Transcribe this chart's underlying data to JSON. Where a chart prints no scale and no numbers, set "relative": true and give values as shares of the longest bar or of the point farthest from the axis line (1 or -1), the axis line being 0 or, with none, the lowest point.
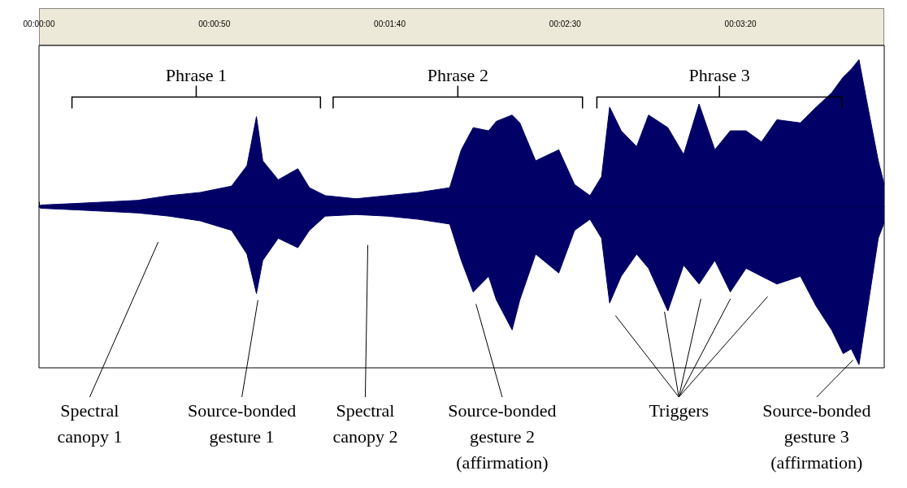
{
  "chart_data": {
    "type": "area",
    "relative": true,
    "x": [
      0,
      0.4,
      10.4,
      19.3,
      28.2,
      37.1,
      46.0,
      54.9,
      59.3,
      62.0,
      63.8,
      68.2,
      73.8,
      77.1,
      81.6,
      90.4,
      99.3,
      108.2,
      117.1,
      120.4,
      123.8,
      128.2,
      130.4,
      134.9,
      137.1,
      141.6,
      148.2,
      152.7,
      157.1,
      160.4,
      162.7,
      166.0,
      170.4,
      173.8,
      179.3,
      183.8,
      188.2,
      192.7,
      197.1,
      201.6,
      206.0,
      210.4,
      217.1,
      221.6,
      226.0,
      229.3,
      231.6,
      233.8,
      236.0,
      239.3,
      241
    ],
    "series": [
      {
        "color": "#000066",
        "values": [
          0,
          0.01,
          0.02,
          0.03,
          0.04,
          0.07,
          0.09,
          0.13,
          0.26,
          0.57,
          0.29,
          0.17,
          0.24,
          0.12,
          0.07,
          0.05,
          0.07,
          0.09,
          0.12,
          0.36,
          0.5,
          0.48,
          0.54,
          0.58,
          0.53,
          0.29,
          0.36,
          0.14,
          0.07,
          0.19,
          0.63,
          0.48,
          0.38,
          0.58,
          0.5,
          0.33,
          0.65,
          0.36,
          0.48,
          0.48,
          0.41,
          0.55,
          0.53,
          0.63,
          0.72,
          0.82,
          0.87,
          0.93,
          0.67,
          0.29,
          0.14
        ]
      },
      {
        "color": "#000066",
        "values": [
          0,
          -0.01,
          -0.02,
          -0.03,
          -0.04,
          -0.06,
          -0.09,
          -0.15,
          -0.3,
          -0.55,
          -0.34,
          -0.2,
          -0.26,
          -0.15,
          -0.06,
          -0.05,
          -0.06,
          -0.08,
          -0.11,
          -0.34,
          -0.54,
          -0.44,
          -0.59,
          -0.78,
          -0.59,
          -0.3,
          -0.42,
          -0.15,
          -0.08,
          -0.2,
          -0.61,
          -0.44,
          -0.3,
          -0.39,
          -0.66,
          -0.37,
          -0.49,
          -0.34,
          -0.54,
          -0.39,
          -0.44,
          -0.49,
          -0.44,
          -0.63,
          -0.78,
          -0.93,
          -0.9,
          -1.0,
          -0.68,
          -0.2,
          -0.1
        ]
      }
    ],
    "xlim": [
      0,
      241
    ],
    "xticks": [
      {
        "value": 0,
        "label": "00:00:00"
      },
      {
        "value": 50,
        "label": "00:00:50"
      },
      {
        "value": 100,
        "label": "00:01:40"
      },
      {
        "value": 150,
        "label": "00:02:30"
      },
      {
        "value": 200,
        "label": "00:03:20"
      }
    ],
    "annotations": [
      "Phrase 1",
      "Phrase 2",
      "Phrase 3",
      "Spectral\ncanopy 1",
      "Source-bonded\ngesture 1",
      "Spectral\ncanopy 2",
      "Source-bonded\ngesture 2\n(affirmation)",
      "Triggers",
      "Source-bonded\ngesture 3\n(affirmation)"
    ]
  }
}
